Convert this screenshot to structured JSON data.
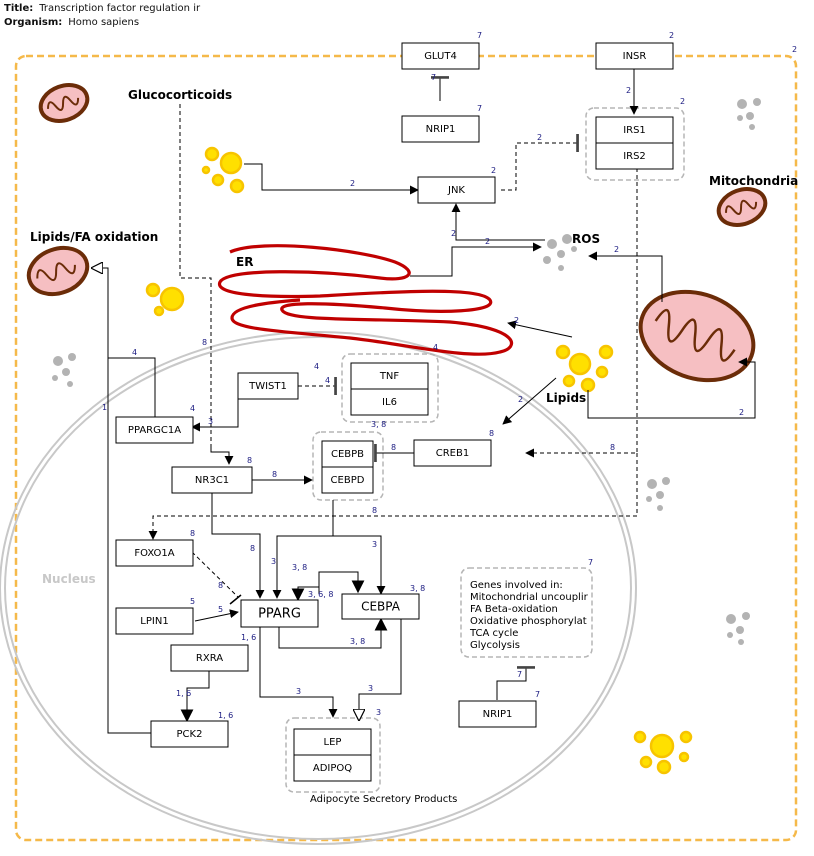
{
  "header": {
    "title_key": "Title:",
    "title_value": "Transcription factor regulation ir",
    "organism_key": "Organism:",
    "organism_value": "Homo sapiens"
  },
  "labels": {
    "glucocorticoids": "Glucocorticoids",
    "lipids_fa": "Lipids/FA oxidation",
    "er": "ER",
    "ros": "ROS",
    "mitochondria": "Mitochondria",
    "lipids": "Lipids",
    "nucleus": "Nucleus",
    "adipocyte_products": "Adipocyte Secretory Products"
  },
  "genes": {
    "glut4": "GLUT4",
    "insr": "INSR",
    "nrip1_top": "NRIP1",
    "irs1": "IRS1",
    "irs2": "IRS2",
    "jnk": "JNK",
    "twist1": "TWIST1",
    "tnf": "TNF",
    "il6": "IL6",
    "ppargc1a": "PPARGC1A",
    "cebpb": "CEBPB",
    "cebpd": "CEBPD",
    "creb1": "CREB1",
    "nr3c1": "NR3C1",
    "foxo1a": "FOXO1A",
    "lpin1": "LPIN1",
    "pparg": "PPARG",
    "cebpa": "CEBPA",
    "rxra": "RXRA",
    "pck2": "PCK2",
    "lep": "LEP",
    "adipoq": "ADIPOQ",
    "nrip1_bottom": "NRIP1"
  },
  "genes_note": {
    "lines": [
      "Genes involved in:",
      "Mitochondrial uncouplir",
      "FA Beta-oxidation",
      "Oxidative phosphorylat",
      "TCA cycle",
      "Glycolysis"
    ]
  },
  "refs": {
    "outer": "2",
    "glut4": "7",
    "insr": "2",
    "nrip1_top": "7",
    "irs_group": "2",
    "insr_irs": "2",
    "jnk_irs": "2",
    "lip_jnk": "2",
    "jnk": "2",
    "ros_jnk": "2",
    "er_ros": "2",
    "mito_ros": "2",
    "er_ref": "4",
    "lip_er": "2",
    "lip_cebp": "2",
    "mito_lip": "2",
    "gluc_nr3c1": "8",
    "twist1_tnf": "4",
    "twist1": "4",
    "ppargc1a": "4",
    "twist1_ppargc1a": "3",
    "lipids_ppargc1a": "4",
    "pck2_lipids": "1",
    "tnf_group": "3, 8",
    "creb1": "8",
    "creb1_cebp": "8",
    "irs_creb1": "8",
    "nr3c1": "8",
    "nr3c1_cebp": "8",
    "irs_foxo1a": "8",
    "foxo1a": "8",
    "foxo1a_pparg": "8",
    "nr3c1_pparg": "8",
    "cebp_pparg": "3",
    "cebp_cebpa": "3",
    "pparg_cebpa_top": "3, 8",
    "cebpa_loop": "3, 6, 8",
    "cebpa": "3, 8",
    "pparg_cebpa_bottom": "3, 8",
    "lpin1": "5",
    "lpin1_pparg": "5",
    "pparg": "1, 6",
    "rxra_pck2": "1, 6",
    "pck2": "1, 6",
    "pparg_lep": "3",
    "cebpa_lep": "3",
    "lep_group": "3",
    "genes_note": "7",
    "nrip1_genes": "7",
    "nrip1_bottom": "7"
  },
  "colors": {
    "membrane": "#f5b94a",
    "er": "#c00000",
    "mito_fill": "#f6bfc2",
    "mito_stroke": "#6b2c08",
    "lipid_fill": "#ffe000",
    "lipid_stroke": "#f7c400",
    "ros": "#b3b3b3",
    "nucleus": "#c8c8c8",
    "ref": "#1a1a80"
  }
}
